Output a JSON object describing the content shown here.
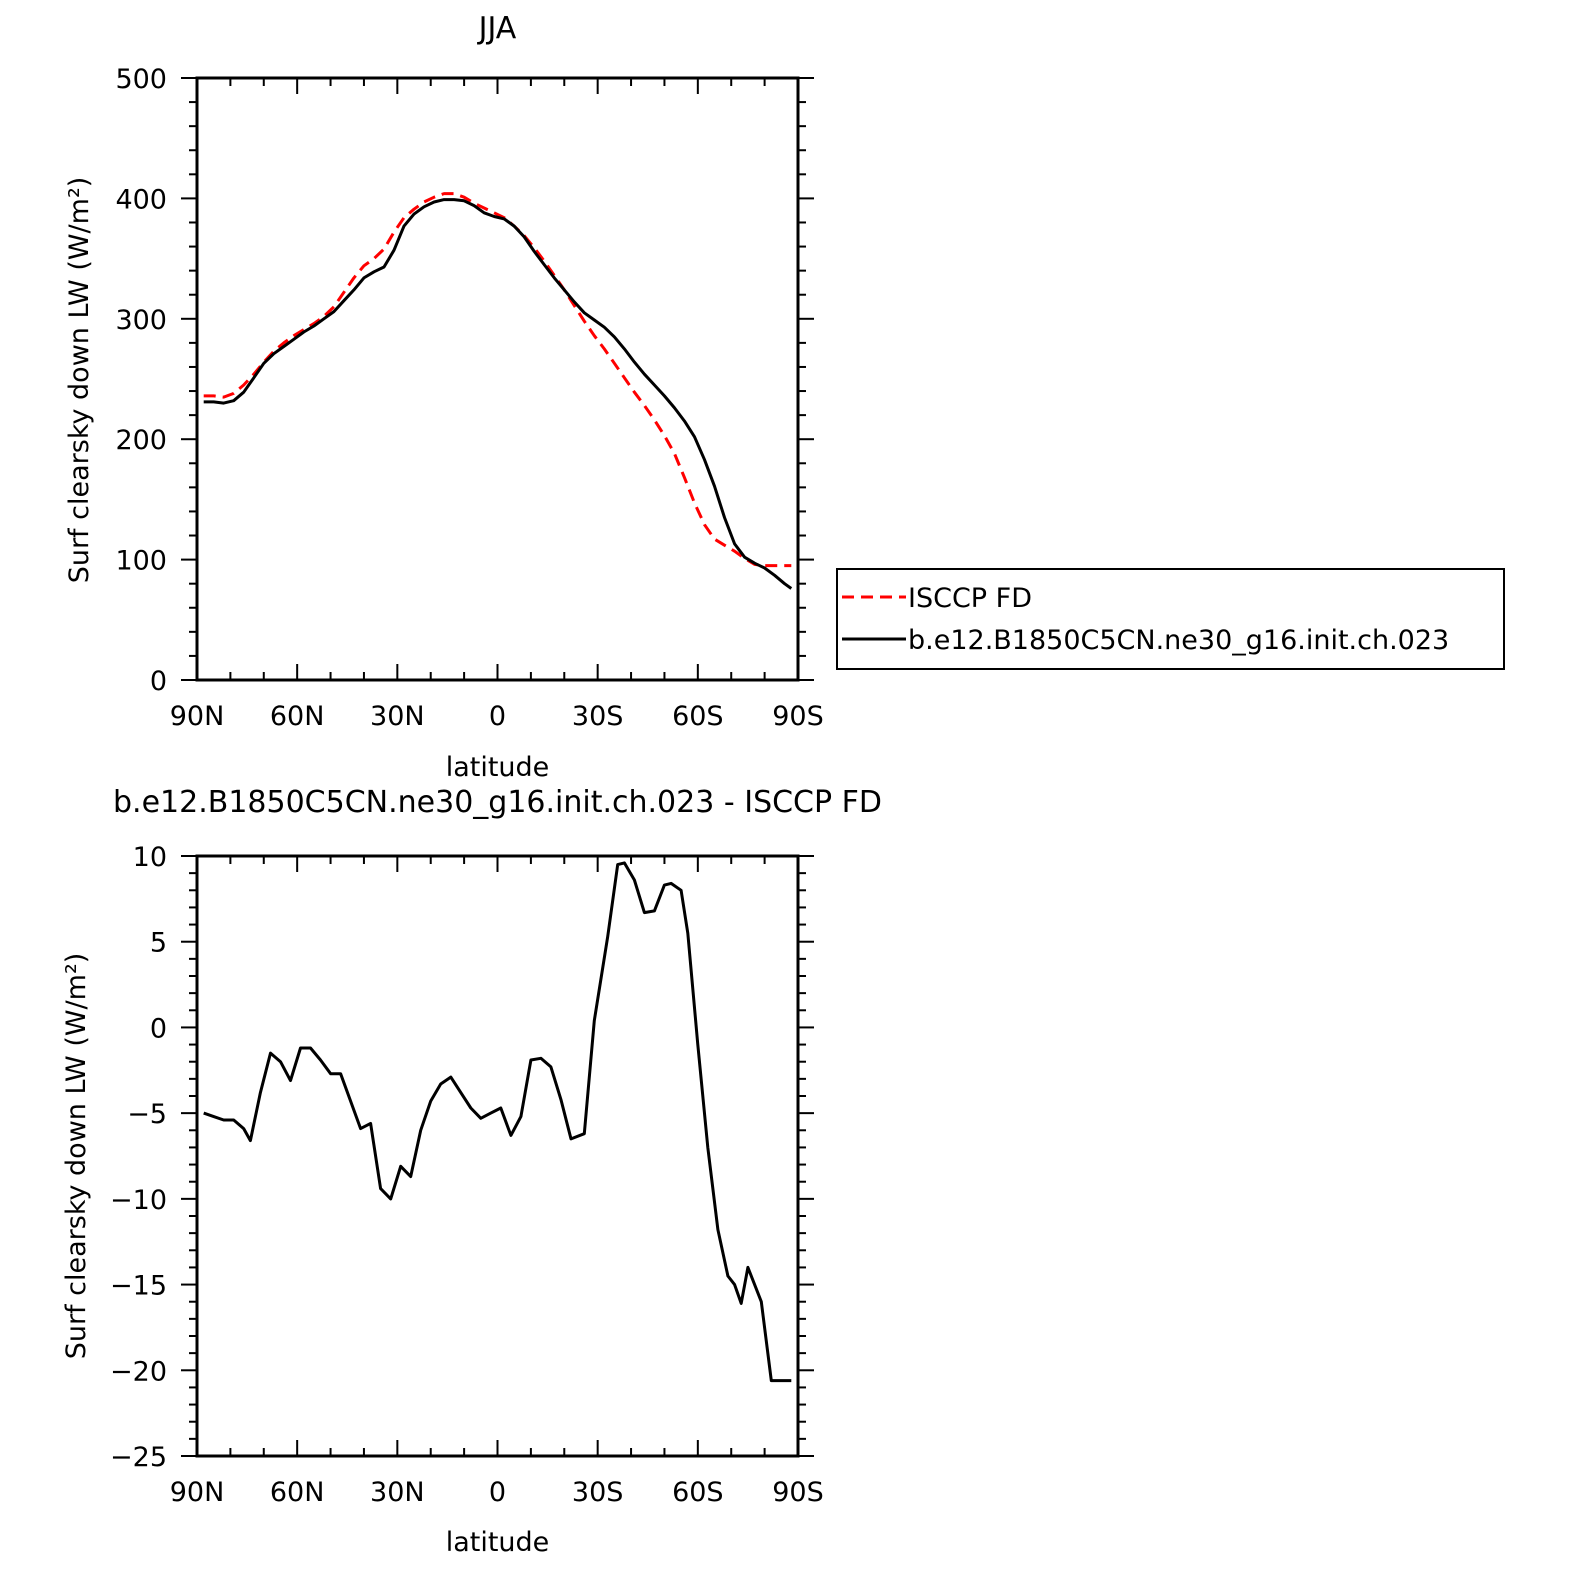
{
  "chart_data": [
    {
      "type": "line",
      "title": "JJA",
      "xlabel": "latitude",
      "ylabel": "Surf clearsky down LW (W/m²)",
      "xlim": [
        90,
        -90
      ],
      "ylim": [
        0,
        500
      ],
      "x_ticks": [
        {
          "value": 90,
          "label": "90N"
        },
        {
          "value": 60,
          "label": "60N"
        },
        {
          "value": 30,
          "label": "30N"
        },
        {
          "value": 0,
          "label": "0"
        },
        {
          "value": -30,
          "label": "30S"
        },
        {
          "value": -60,
          "label": "60S"
        },
        {
          "value": -90,
          "label": "90S"
        }
      ],
      "y_ticks": [
        0,
        100,
        200,
        300,
        400,
        500
      ],
      "legend": {
        "position": "right"
      },
      "series": [
        {
          "name": "ISCCP FD",
          "color": "#ff0000",
          "dash": "dashed",
          "x": [
            88,
            85,
            82,
            79,
            76,
            73,
            70,
            67,
            64,
            61,
            58,
            55,
            52,
            49,
            46,
            43,
            40,
            37,
            34,
            31,
            28,
            25,
            22,
            19,
            16,
            13,
            10,
            7,
            4,
            1,
            -2,
            -5,
            -8,
            -11,
            -14,
            -17,
            -20,
            -23,
            -26,
            -29,
            -32,
            -35,
            -38,
            -41,
            -44,
            -47,
            -50,
            -53,
            -56,
            -59,
            -62,
            -65,
            -68,
            -71,
            -74,
            -77,
            -80,
            -83,
            -86,
            -88
          ],
          "values": [
            236,
            236,
            235,
            238,
            245,
            254,
            264,
            273,
            280,
            286,
            291,
            296,
            302,
            310,
            322,
            334,
            344,
            350,
            358,
            372,
            384,
            391,
            397,
            401,
            404,
            404,
            401,
            396,
            392,
            388,
            384,
            377,
            369,
            359,
            348,
            336,
            324,
            311,
            298,
            286,
            275,
            263,
            251,
            239,
            228,
            216,
            203,
            188,
            168,
            147,
            129,
            117,
            112,
            107,
            101,
            96,
            95,
            95,
            95,
            95
          ]
        },
        {
          "name": "b.e12.B1850C5CN.ne30_g16.init.ch.023",
          "color": "#000000",
          "dash": "solid",
          "x": [
            88,
            85,
            82,
            79,
            76,
            73,
            70,
            67,
            64,
            61,
            58,
            55,
            52,
            49,
            46,
            43,
            40,
            37,
            34,
            31,
            28,
            25,
            22,
            19,
            16,
            13,
            10,
            7,
            4,
            1,
            -2,
            -5,
            -8,
            -11,
            -14,
            -17,
            -20,
            -23,
            -26,
            -29,
            -32,
            -35,
            -38,
            -41,
            -44,
            -47,
            -50,
            -53,
            -56,
            -59,
            -62,
            -65,
            -68,
            -71,
            -74,
            -77,
            -80,
            -83,
            -86,
            -88
          ],
          "values": [
            231,
            231,
            230,
            232,
            239,
            251,
            263,
            271,
            277,
            283,
            289,
            294,
            300,
            306,
            315,
            324,
            334,
            339,
            343,
            357,
            377,
            387,
            393,
            397,
            399,
            399,
            398,
            394,
            388,
            385,
            383,
            377,
            368,
            356,
            345,
            334,
            324,
            314,
            305,
            299,
            293,
            285,
            275,
            264,
            254,
            245,
            236,
            226,
            215,
            202,
            183,
            161,
            135,
            113,
            102,
            97,
            93,
            87,
            80,
            76
          ]
        }
      ]
    },
    {
      "type": "line",
      "title": "b.e12.B1850C5CN.ne30_g16.init.ch.023 - ISCCP FD",
      "xlabel": "latitude",
      "ylabel": "Surf clearsky down LW (W/m²)",
      "xlim": [
        90,
        -90
      ],
      "ylim": [
        -25,
        10
      ],
      "x_ticks": [
        {
          "value": 90,
          "label": "90N"
        },
        {
          "value": 60,
          "label": "60N"
        },
        {
          "value": 30,
          "label": "30N"
        },
        {
          "value": 0,
          "label": "0"
        },
        {
          "value": -30,
          "label": "30S"
        },
        {
          "value": -60,
          "label": "60S"
        },
        {
          "value": -90,
          "label": "90S"
        }
      ],
      "y_ticks": [
        -25,
        -20,
        -15,
        -10,
        -5,
        0,
        5,
        10
      ],
      "series": [
        {
          "color": "#000000",
          "dash": "solid",
          "x": [
            88,
            85,
            82,
            79,
            76,
            74,
            71,
            68,
            65,
            62,
            59,
            56,
            53,
            50,
            47,
            44,
            41,
            38,
            35,
            32,
            29,
            26,
            23,
            20,
            17,
            14,
            11,
            8,
            5,
            2,
            -1,
            -4,
            -7,
            -10,
            -13,
            -16,
            -19,
            -22,
            -26,
            -29,
            -33,
            -36,
            -38,
            -41,
            -44,
            -47,
            -50,
            -52,
            -55,
            -57,
            -60,
            -63,
            -66,
            -69,
            -71,
            -73,
            -75,
            -79,
            -82,
            -85,
            -88
          ],
          "values": [
            -5.0,
            -5.2,
            -5.4,
            -5.4,
            -5.9,
            -6.6,
            -3.8,
            -1.5,
            -2.0,
            -3.1,
            -1.2,
            -1.2,
            -1.9,
            -2.7,
            -2.7,
            -4.3,
            -5.9,
            -5.6,
            -9.4,
            -10.0,
            -8.1,
            -8.7,
            -6.0,
            -4.3,
            -3.3,
            -2.9,
            -3.8,
            -4.7,
            -5.3,
            -5.0,
            -4.7,
            -6.3,
            -5.2,
            -1.9,
            -1.8,
            -2.3,
            -4.2,
            -6.5,
            -6.2,
            0.4,
            5.3,
            9.5,
            9.6,
            8.6,
            6.7,
            6.8,
            8.3,
            8.4,
            8.0,
            5.5,
            -1.0,
            -7.0,
            -11.8,
            -14.5,
            -15.0,
            -16.1,
            -14.0,
            -16.0,
            -20.6,
            -20.6,
            -20.6
          ]
        }
      ]
    }
  ]
}
